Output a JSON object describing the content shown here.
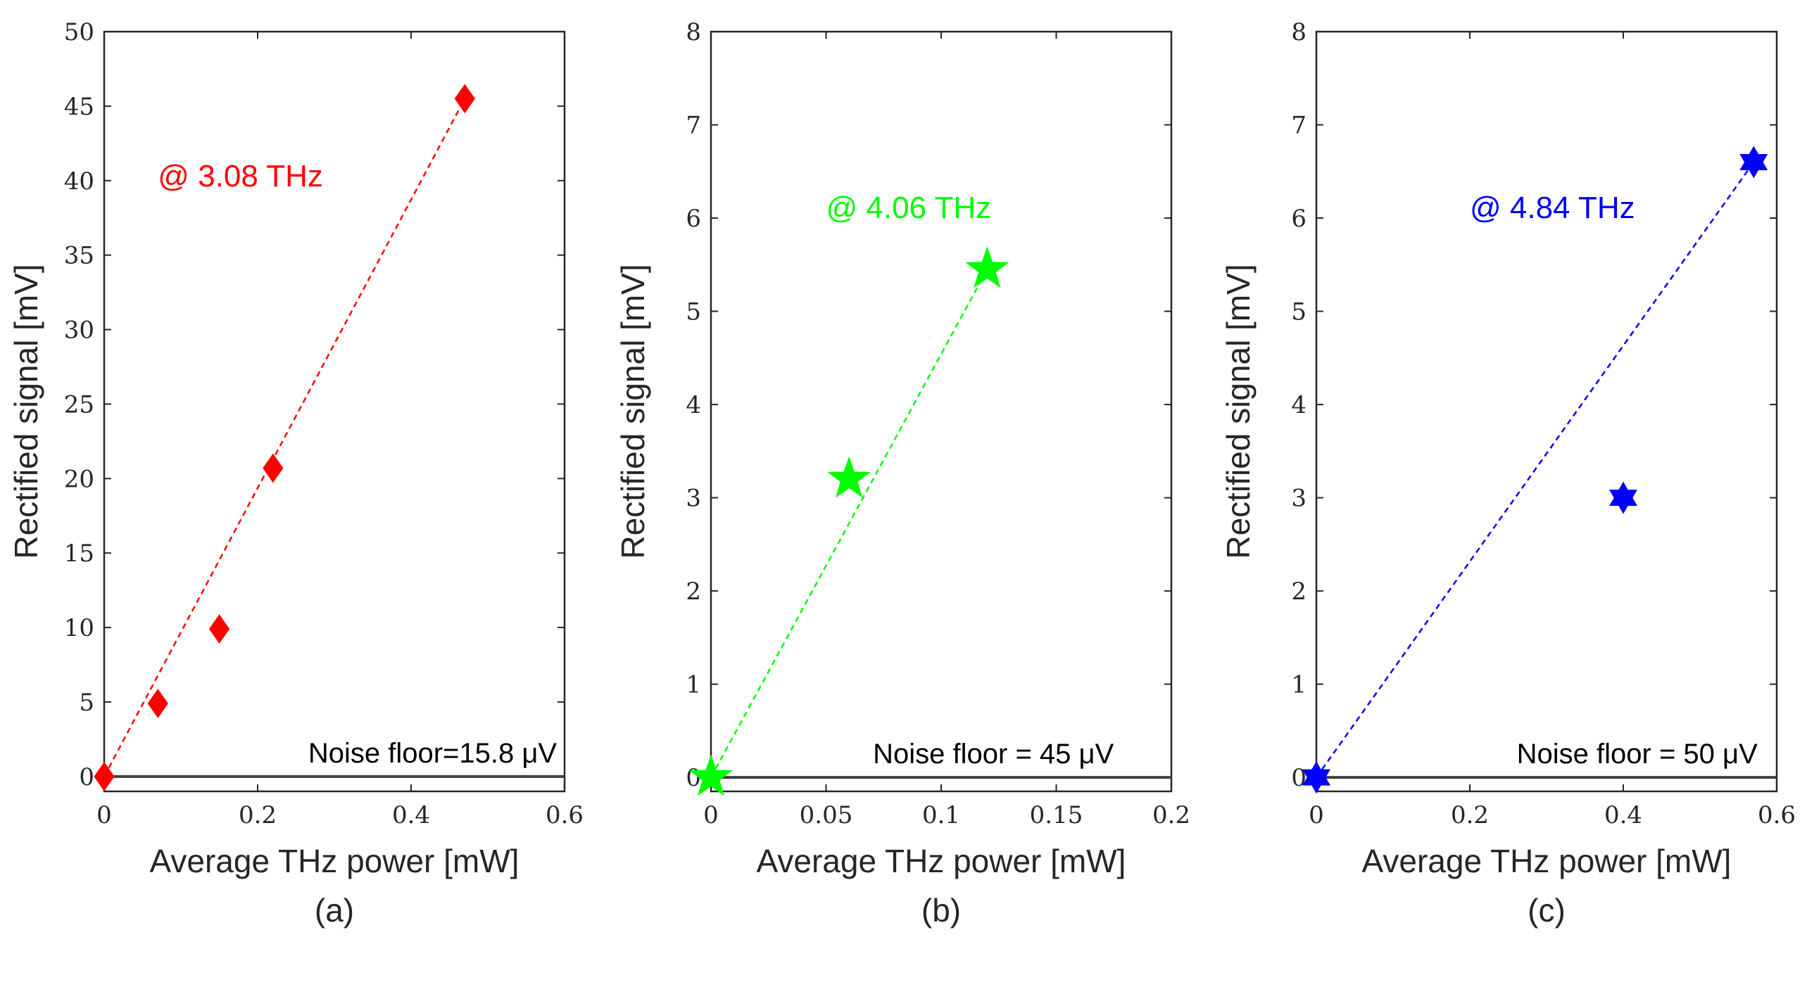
{
  "chart_data": [
    {
      "type": "scatter",
      "panel": "a",
      "caption": "(a)",
      "xlabel": "Average THz power [mW]",
      "ylabel": "Rectified signal [mV]",
      "xlim": [
        0,
        0.6
      ],
      "ylim": [
        -1,
        50
      ],
      "xticks": [
        0,
        0.2,
        0.4,
        0.6
      ],
      "xtick_labels": [
        "0",
        "0.2",
        "0.4",
        "0.6"
      ],
      "yticks": [
        0,
        5,
        10,
        15,
        20,
        25,
        30,
        35,
        40,
        45,
        50
      ],
      "ytick_labels": [
        "0",
        "5",
        "10",
        "15",
        "20",
        "25",
        "30",
        "35",
        "40",
        "45",
        "50"
      ],
      "grid": false,
      "marker": "diamond",
      "color": "#ff0000",
      "x": [
        0,
        0.07,
        0.15,
        0.22,
        0.47
      ],
      "y": [
        0,
        4.9,
        9.9,
        20.7,
        45.5
      ],
      "fit_line": {
        "x": [
          0,
          0.47
        ],
        "y": [
          0,
          45.5
        ]
      },
      "annotation": {
        "text": "@ 3.08 THz",
        "x": 0.07,
        "y": 39.6
      },
      "noise_floor": {
        "y": 0,
        "text": "Noise floor=15.8 μV",
        "text_x": 0.59
      }
    },
    {
      "type": "scatter",
      "panel": "b",
      "caption": "(b)",
      "xlabel": "Average THz power [mW]",
      "ylabel": "Rectified signal [mV]",
      "xlim": [
        0,
        0.2
      ],
      "ylim": [
        -0.15,
        8
      ],
      "xticks": [
        0,
        0.05,
        0.1,
        0.15,
        0.2
      ],
      "xtick_labels": [
        "0",
        "0.05",
        "0.1",
        "0.15",
        "0.2"
      ],
      "yticks": [
        0,
        1,
        2,
        3,
        4,
        5,
        6,
        7,
        8
      ],
      "ytick_labels": [
        "0",
        "1",
        "2",
        "3",
        "4",
        "5",
        "6",
        "7",
        "8"
      ],
      "grid": false,
      "marker": "star5",
      "color": "#00ff00",
      "x": [
        0,
        0.06,
        0.12
      ],
      "y": [
        0,
        3.2,
        5.45
      ],
      "fit_line": {
        "x": [
          0,
          0.12
        ],
        "y": [
          0,
          5.45
        ]
      },
      "annotation": {
        "text": "@ 4.06 THz",
        "x": 0.05,
        "y": 6.0
      },
      "noise_floor": {
        "y": 0,
        "text": "Noise floor = 45 μV",
        "text_x": 0.175
      }
    },
    {
      "type": "scatter",
      "panel": "c",
      "caption": "(c)",
      "xlabel": "Average THz power [mW]",
      "ylabel": "Rectified signal [mV]",
      "xlim": [
        0,
        0.6
      ],
      "ylim": [
        -0.15,
        8
      ],
      "xticks": [
        0,
        0.2,
        0.4,
        0.6
      ],
      "xtick_labels": [
        "0",
        "0.2",
        "0.4",
        "0.6"
      ],
      "yticks": [
        0,
        1,
        2,
        3,
        4,
        5,
        6,
        7,
        8
      ],
      "ytick_labels": [
        "0",
        "1",
        "2",
        "3",
        "4",
        "5",
        "6",
        "7",
        "8"
      ],
      "grid": false,
      "marker": "hexagram",
      "color": "#0000ff",
      "x": [
        0,
        0.4,
        0.57
      ],
      "y": [
        0,
        3.0,
        6.6
      ],
      "fit_line": {
        "x": [
          0,
          0.57
        ],
        "y": [
          0,
          6.6
        ]
      },
      "annotation": {
        "text": "@ 4.84 THz",
        "x": 0.2,
        "y": 6.0
      },
      "noise_floor": {
        "y": 0,
        "text": "Noise floor = 50 μV",
        "text_x": 0.575
      }
    }
  ]
}
